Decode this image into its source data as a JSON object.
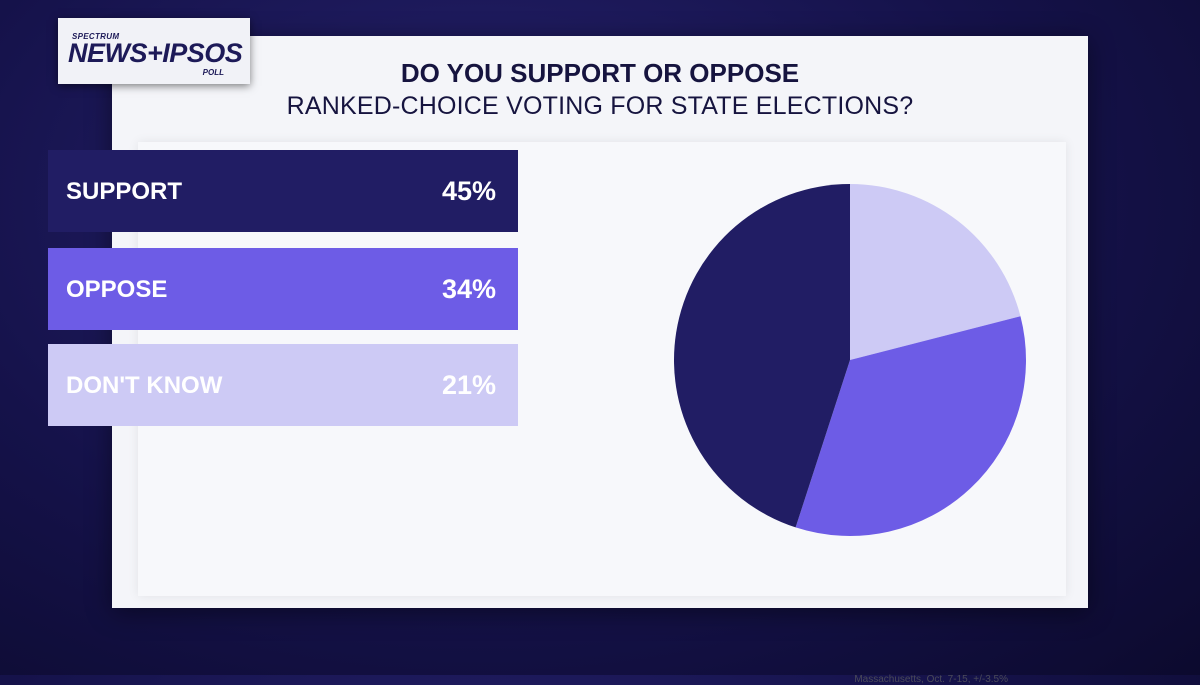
{
  "logo": {
    "top": "SPECTRUM",
    "main": "NEWS+IPSOS",
    "sub": "POLL"
  },
  "title_line1": "DO YOU SUPPORT OR OPPOSE",
  "title_line2": "RANKED-CHOICE VOTING FOR STATE ELECTIONS?",
  "source": "Massachusetts, Oct. 7-15, +/-3.5%",
  "chart_data": {
    "type": "pie",
    "title": "DO YOU SUPPORT OR OPPOSE RANKED-CHOICE VOTING FOR STATE ELECTIONS?",
    "slices": [
      {
        "label": "SUPPORT",
        "value": 45,
        "value_label": "45%",
        "color": "#211d64"
      },
      {
        "label": "OPPOSE",
        "value": 34,
        "value_label": "34%",
        "color": "#6d5ce6"
      },
      {
        "label": "DON'T KNOW",
        "value": 21,
        "value_label": "21%",
        "color": "#cdcaf5"
      }
    ],
    "colors": {
      "card": "#f4f5f9",
      "text": "#16143f"
    }
  }
}
